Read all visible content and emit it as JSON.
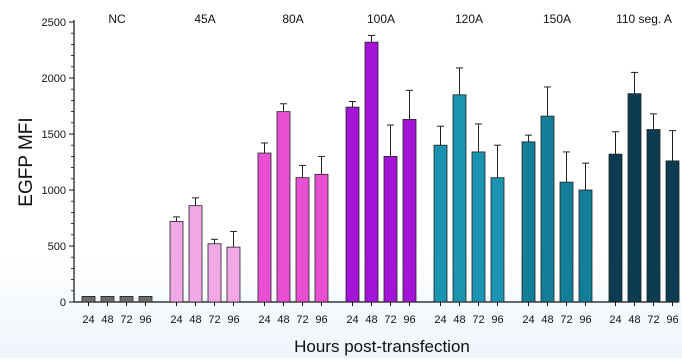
{
  "chart_data": {
    "type": "bar",
    "xlabel": "Hours post-transfection",
    "ylabel": "EGFP MFI",
    "ylim": [
      0,
      2500
    ],
    "yticks": [
      0,
      500,
      1000,
      1500,
      2000,
      2500
    ],
    "grid": false,
    "groups": [
      {
        "label": "NC",
        "color": "#6b6b6b",
        "categories": [
          "24",
          "48",
          "72",
          "96"
        ],
        "values": [
          50,
          50,
          50,
          50
        ],
        "errors": [
          0,
          0,
          0,
          0
        ]
      },
      {
        "label": "45A",
        "color": "#f0a8e6",
        "categories": [
          "24",
          "48",
          "72",
          "96"
        ],
        "values": [
          720,
          860,
          520,
          490
        ],
        "errors": [
          40,
          70,
          40,
          140
        ]
      },
      {
        "label": "80A",
        "color": "#e94fd2",
        "categories": [
          "24",
          "48",
          "72",
          "96"
        ],
        "values": [
          1330,
          1700,
          1110,
          1140
        ],
        "errors": [
          90,
          70,
          110,
          160
        ]
      },
      {
        "label": "100A",
        "color": "#a414d6",
        "categories": [
          "24",
          "48",
          "72",
          "96"
        ],
        "values": [
          1740,
          2320,
          1300,
          1630
        ],
        "errors": [
          50,
          60,
          280,
          260
        ]
      },
      {
        "label": "120A",
        "color": "#1c93b0",
        "categories": [
          "24",
          "48",
          "72",
          "96"
        ],
        "values": [
          1400,
          1850,
          1340,
          1110
        ],
        "errors": [
          170,
          240,
          250,
          290
        ]
      },
      {
        "label": "150A",
        "color": "#137e97",
        "categories": [
          "24",
          "48",
          "72",
          "96"
        ],
        "values": [
          1430,
          1660,
          1070,
          1000
        ],
        "errors": [
          60,
          260,
          270,
          240
        ]
      },
      {
        "label": "110 seg. A",
        "color": "#0c3c52",
        "categories": [
          "24",
          "48",
          "72",
          "96"
        ],
        "values": [
          1320,
          1860,
          1540,
          1260
        ],
        "errors": [
          200,
          190,
          140,
          270
        ]
      }
    ]
  }
}
